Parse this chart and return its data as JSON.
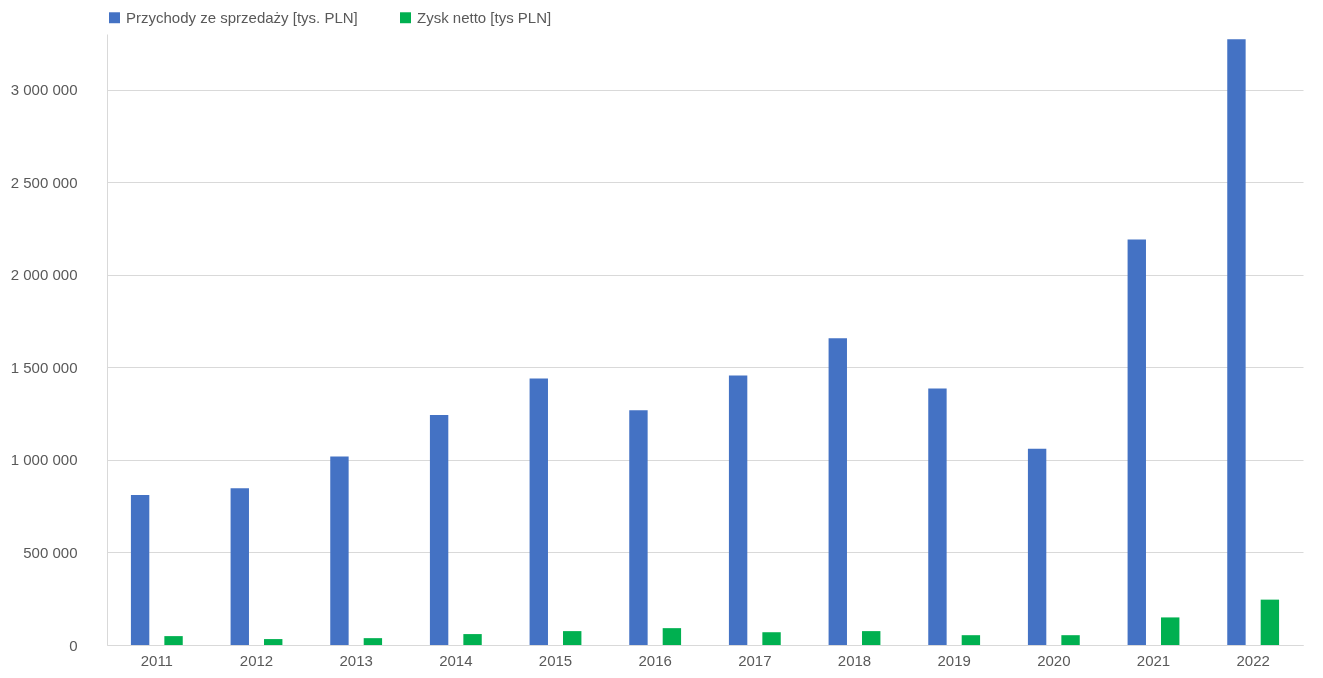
{
  "chart_data": {
    "type": "bar",
    "categories": [
      "2011",
      "2012",
      "2013",
      "2014",
      "2015",
      "2016",
      "2017",
      "2018",
      "2019",
      "2020",
      "2021",
      "2022"
    ],
    "series": [
      {
        "name": "Przychody ze sprzedaży [tys. PLN]",
        "color": "#4472c4",
        "values": [
          810000,
          847000,
          1018000,
          1242000,
          1439000,
          1268000,
          1455000,
          1657000,
          1385000,
          1060000,
          2190000,
          3272000
        ]
      },
      {
        "name": "Zysk netto [tys PLN]",
        "color": "#00b050",
        "values": [
          48000,
          32000,
          37000,
          59000,
          75000,
          91000,
          69000,
          75000,
          53000,
          53000,
          149000,
          245000
        ]
      }
    ],
    "yticks": [
      {
        "value": 0,
        "label": "0"
      },
      {
        "value": 500000,
        "label": "500 000"
      },
      {
        "value": 1000000,
        "label": "1 000 000"
      },
      {
        "value": 1500000,
        "label": "1 500 000"
      },
      {
        "value": 2000000,
        "label": "2 000 000"
      },
      {
        "value": 2500000,
        "label": "2 500 000"
      },
      {
        "value": 3000000,
        "label": "3 000 000"
      }
    ],
    "ylim": [
      0,
      3300000
    ],
    "grid": "y",
    "legend": "top"
  }
}
